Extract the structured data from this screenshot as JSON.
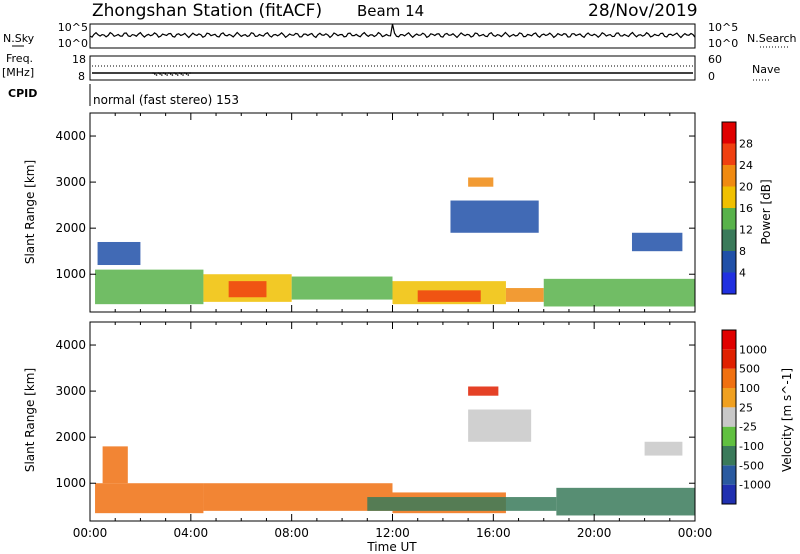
{
  "header": {
    "station": "Zhongshan Station (fitACF)",
    "beam": "Beam 14",
    "date": "28/Nov/2019"
  },
  "params": {
    "nsky_label": "N.Sky",
    "nsky_ticks": [
      "10^5",
      "10^0"
    ],
    "nsearch_label": "N.Search",
    "nsearch_ticks": [
      "10^5",
      "10^0"
    ],
    "freq_label": "Freq.",
    "freq_unit": "[MHz]",
    "freq_ticks": [
      "18",
      "8"
    ],
    "nave_label": "Nave",
    "nave_ticks": [
      "60",
      "0"
    ],
    "cpid_label": "CPID",
    "cpid_text": "normal (fast stereo) 153"
  },
  "chart_data": [
    {
      "type": "heatmap",
      "name": "power",
      "ylabel": "Slant Range [km]",
      "yticks": [
        "1000",
        "2000",
        "3000",
        "4000"
      ],
      "ylim": [
        180,
        4500
      ],
      "xlim": [
        0,
        24
      ],
      "colorbar": {
        "label": "Power [dB]",
        "ticks": [
          "4",
          "8",
          "12",
          "16",
          "20",
          "24",
          "28"
        ],
        "colors": [
          "#2030e0",
          "#2050a8",
          "#3a7a5a",
          "#58b24a",
          "#f0c000",
          "#f08a10",
          "#f04010",
          "#e00000"
        ]
      },
      "cells": [
        {
          "t0": 0.2,
          "t1": 4.5,
          "r0": 350,
          "r1": 1100,
          "level": 3
        },
        {
          "t0": 4.5,
          "t1": 8.0,
          "r0": 400,
          "r1": 1000,
          "level": 4
        },
        {
          "t0": 5.5,
          "t1": 7.0,
          "r0": 500,
          "r1": 850,
          "level": 6
        },
        {
          "t0": 8.0,
          "t1": 12.0,
          "r0": 450,
          "r1": 950,
          "level": 3
        },
        {
          "t0": 12.0,
          "t1": 16.5,
          "r0": 350,
          "r1": 850,
          "level": 4
        },
        {
          "t0": 13.0,
          "t1": 15.5,
          "r0": 400,
          "r1": 650,
          "level": 6
        },
        {
          "t0": 16.5,
          "t1": 18.0,
          "r0": 400,
          "r1": 700,
          "level": 5
        },
        {
          "t0": 18.0,
          "t1": 24.0,
          "r0": 300,
          "r1": 900,
          "level": 3
        },
        {
          "t0": 0.3,
          "t1": 2.0,
          "r0": 1200,
          "r1": 1700,
          "level": 1
        },
        {
          "t0": 14.3,
          "t1": 17.8,
          "r0": 1900,
          "r1": 2600,
          "level": 1
        },
        {
          "t0": 15.0,
          "t1": 16.0,
          "r0": 2900,
          "r1": 3100,
          "level": 5
        },
        {
          "t0": 21.5,
          "t1": 23.5,
          "r0": 1500,
          "r1": 1900,
          "level": 1
        }
      ]
    },
    {
      "type": "heatmap",
      "name": "velocity",
      "ylabel": "Slant Range [km]",
      "yticks": [
        "1000",
        "2000",
        "3000",
        "4000"
      ],
      "ylim": [
        180,
        4500
      ],
      "xlim": [
        0,
        24
      ],
      "xticks": [
        "00:00",
        "04:00",
        "08:00",
        "12:00",
        "16:00",
        "20:00",
        "00:00"
      ],
      "xlabel": "Time UT",
      "colorbar": {
        "label": "Velocity [m s^-1]",
        "ticks": [
          "1000",
          "500",
          "100",
          "25",
          "-25",
          "-100",
          "-500",
          "-1000"
        ],
        "colors": [
          "#2030b0",
          "#2a5aa0",
          "#3a7a5a",
          "#60c040",
          "#c8c8c8",
          "#f0a020",
          "#f07010",
          "#e02000",
          "#e00000"
        ]
      },
      "cells": [
        {
          "t0": 0.2,
          "t1": 4.5,
          "r0": 350,
          "r1": 1000,
          "level": 6
        },
        {
          "t0": 0.5,
          "t1": 1.5,
          "r0": 1000,
          "r1": 1800,
          "level": 6
        },
        {
          "t0": 4.5,
          "t1": 12.0,
          "r0": 400,
          "r1": 1000,
          "level": 6
        },
        {
          "t0": 12.0,
          "t1": 16.5,
          "r0": 350,
          "r1": 800,
          "level": 6
        },
        {
          "t0": 11.0,
          "t1": 18.5,
          "r0": 400,
          "r1": 700,
          "level": 2
        },
        {
          "t0": 18.5,
          "t1": 24.0,
          "r0": 300,
          "r1": 900,
          "level": 2
        },
        {
          "t0": 15.0,
          "t1": 17.5,
          "r0": 1900,
          "r1": 2600,
          "level": 4
        },
        {
          "t0": 15.0,
          "t1": 16.2,
          "r0": 2900,
          "r1": 3100,
          "level": 7
        },
        {
          "t0": 22.0,
          "t1": 23.5,
          "r0": 1600,
          "r1": 1900,
          "level": 4
        }
      ]
    }
  ]
}
